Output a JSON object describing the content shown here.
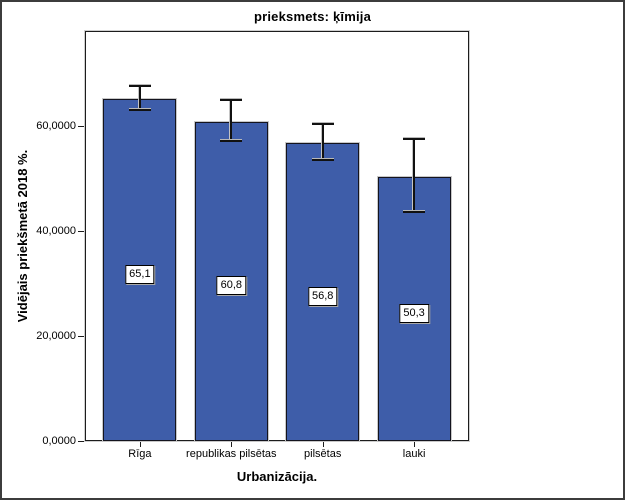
{
  "chart_data": {
    "type": "bar",
    "title": "prieksmets: ķīmija",
    "xlabel": "Urbanizācija.",
    "ylabel": "Vidējais priekšmetā 2018 %.",
    "categories": [
      "Rīga",
      "republikas pilsētas",
      "pilsētas",
      "lauki"
    ],
    "values": [
      65.1,
      60.8,
      56.8,
      50.3
    ],
    "value_labels": [
      "65,1",
      "60,8",
      "56,8",
      "50,3"
    ],
    "error_bars_ci": [
      {
        "low": 63.2,
        "high": 67.6
      },
      {
        "low": 57.3,
        "high": 65.0
      },
      {
        "low": 53.7,
        "high": 60.4
      },
      {
        "low": 43.8,
        "high": 57.5
      }
    ],
    "y_ticks": [
      {
        "label": "0,0000",
        "value": 0
      },
      {
        "label": "20,0000",
        "value": 20
      },
      {
        "label": "40,0000",
        "value": 40
      },
      {
        "label": "60,0000",
        "value": 60
      }
    ],
    "ylim": [
      0,
      78
    ],
    "grid": false,
    "legend": "none",
    "colors": {
      "bar_fill": "#3e5da9",
      "bar_border": "#14141e",
      "axis": "#1c1c1c",
      "shadow": "#c8c8c8",
      "label_box_bg": "#ffffff",
      "text": "#000000"
    }
  }
}
